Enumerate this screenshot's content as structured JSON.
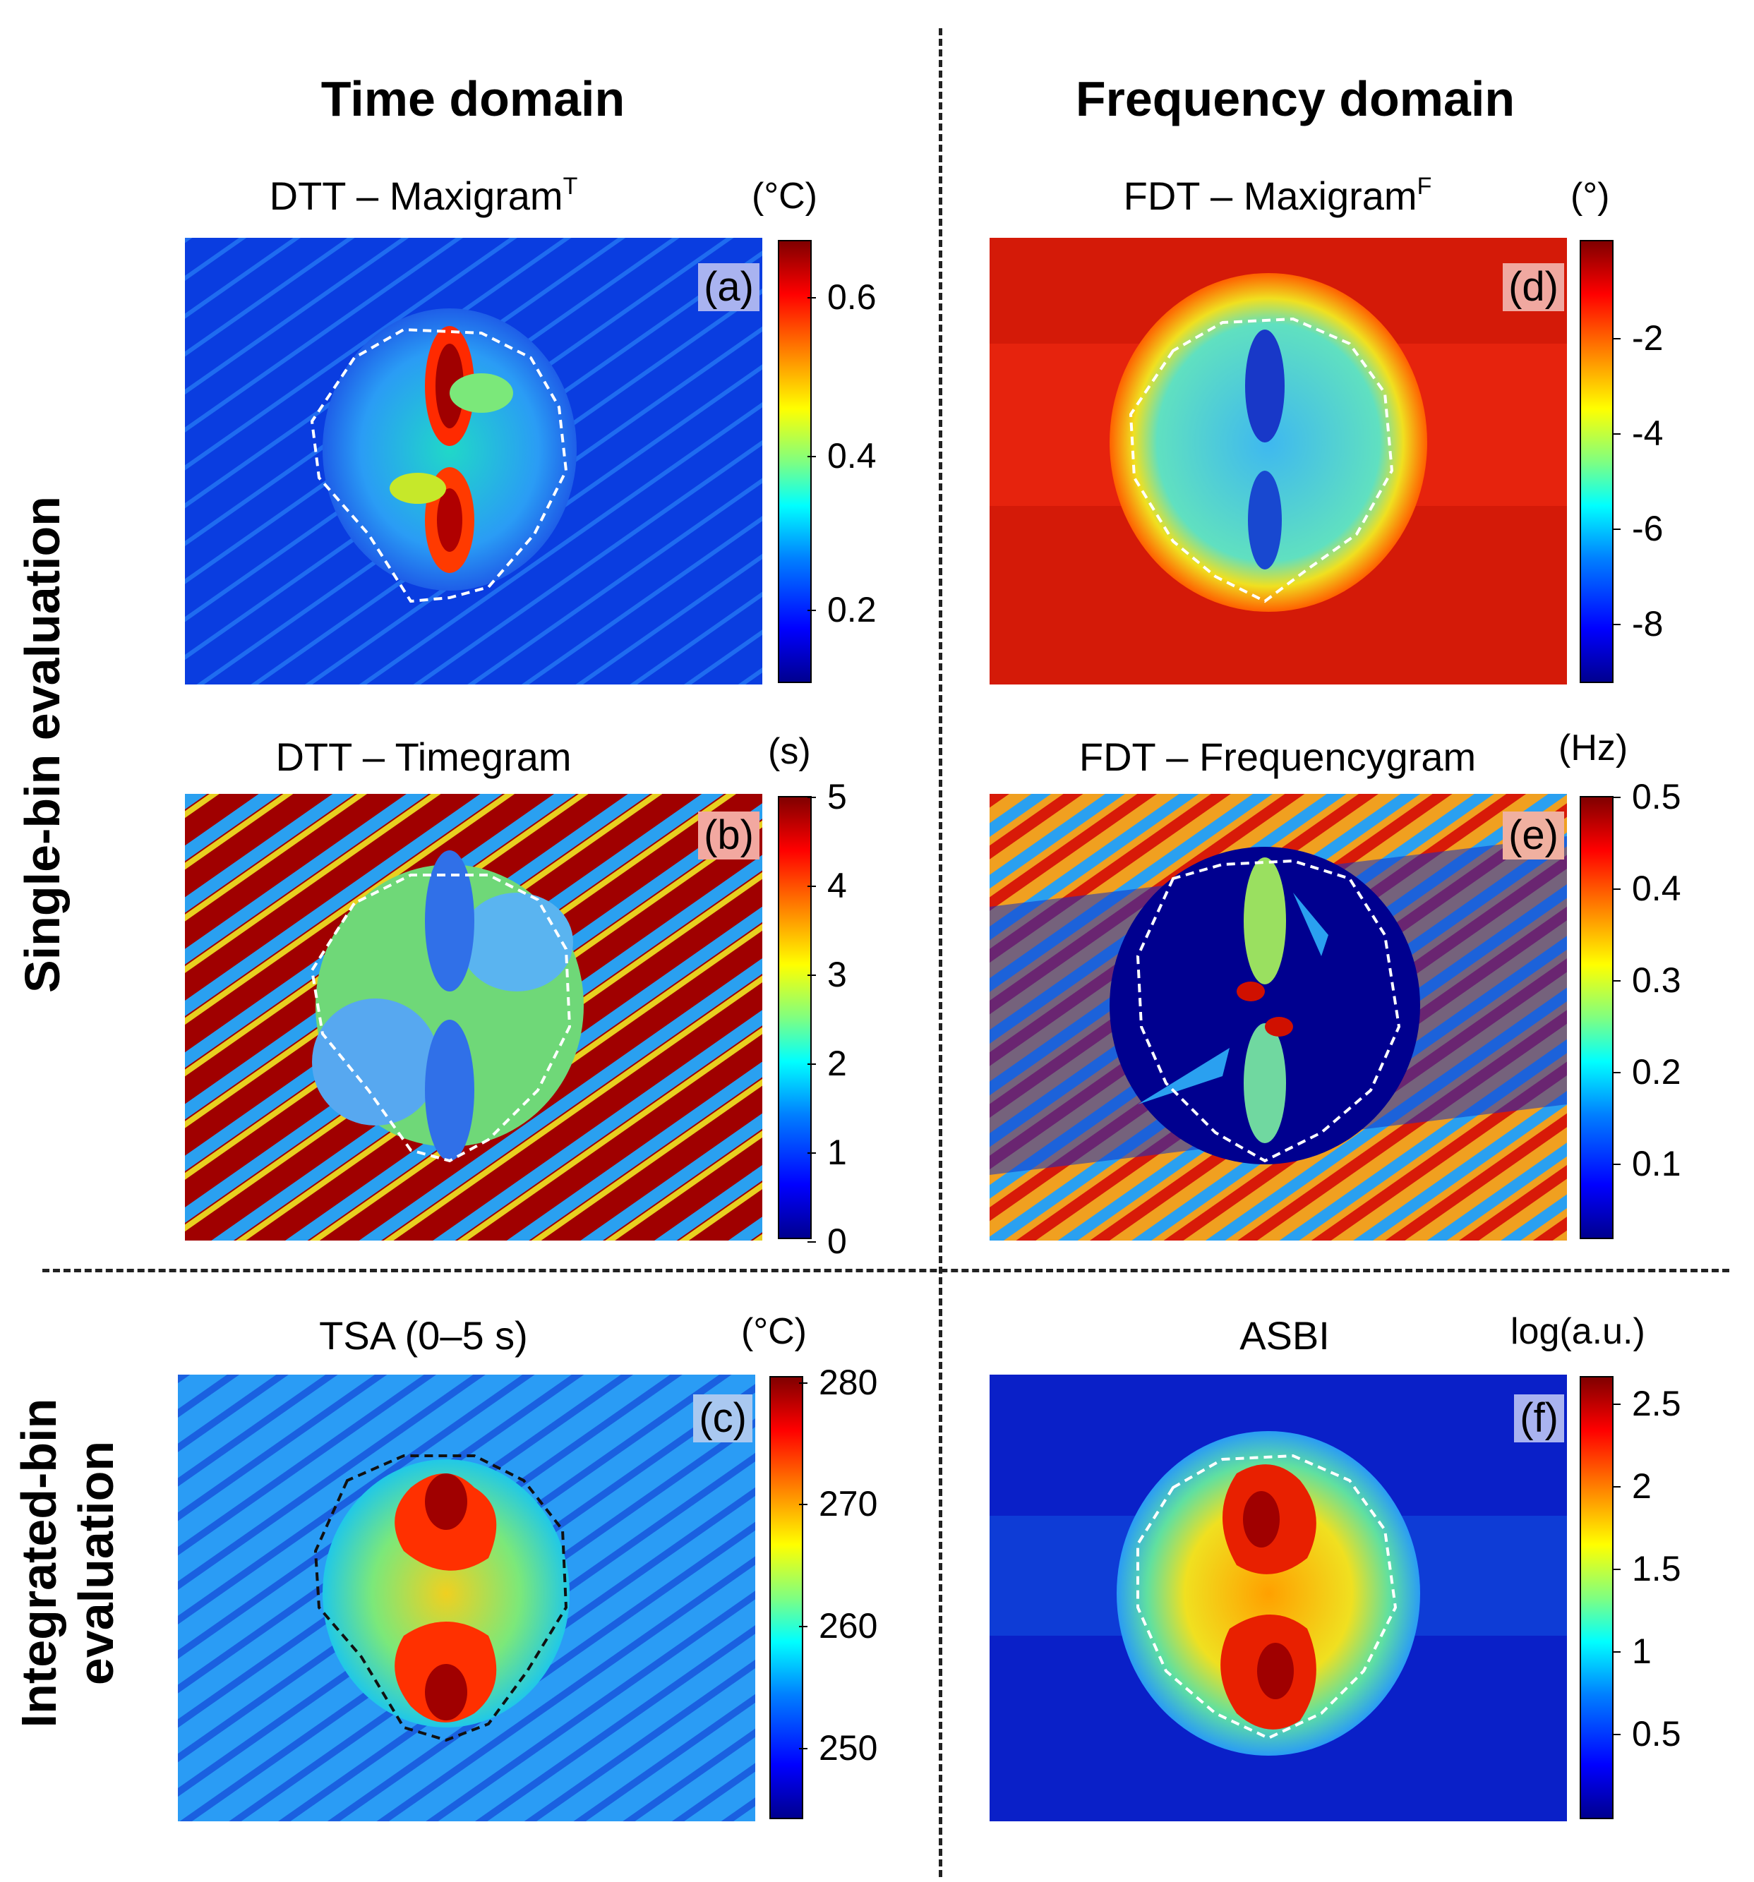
{
  "columns": {
    "left": "Time domain",
    "right": "Frequency domain"
  },
  "rows": {
    "top": "Single-bin evaluation",
    "bottom_line1": "Integrated-bin",
    "bottom_line2": "evaluation"
  },
  "panels": {
    "a": {
      "title_main": "DTT – Maxigram",
      "title_sup": "T",
      "label": "(a)",
      "unit": "(°C)",
      "ticks": [
        "0.6",
        "0.4",
        "0.2"
      ]
    },
    "b": {
      "title": "DTT – Timegram",
      "label": "(b)",
      "unit": "(s)",
      "ticks": [
        "5",
        "4",
        "3",
        "2",
        "1",
        "0"
      ]
    },
    "c": {
      "title": "TSA (0–5 s)",
      "label": "(c)",
      "unit": "(°C)",
      "ticks": [
        "280",
        "270",
        "260",
        "250"
      ]
    },
    "d": {
      "title_main": "FDT – Maxigram",
      "title_sup": "F",
      "label": "(d)",
      "unit": "(°)",
      "ticks": [
        "-2",
        "-4",
        "-6",
        "-8"
      ]
    },
    "e": {
      "title": "FDT – Frequencygram",
      "label": "(e)",
      "unit": "(Hz)",
      "ticks": [
        "0.5",
        "0.4",
        "0.3",
        "0.2",
        "0.1"
      ]
    },
    "f": {
      "title": "ASBI",
      "label": "(f)",
      "unit": "log(a.u.)",
      "ticks": [
        "2.5",
        "2",
        "1.5",
        "1",
        "0.5"
      ]
    }
  },
  "colors": {
    "jet_dark_blue": "#00008f",
    "jet_blue": "#0000ff",
    "jet_cyan": "#00ffff",
    "jet_yellow": "#ffff00",
    "jet_red": "#ff0000",
    "jet_dark_red": "#800000"
  }
}
